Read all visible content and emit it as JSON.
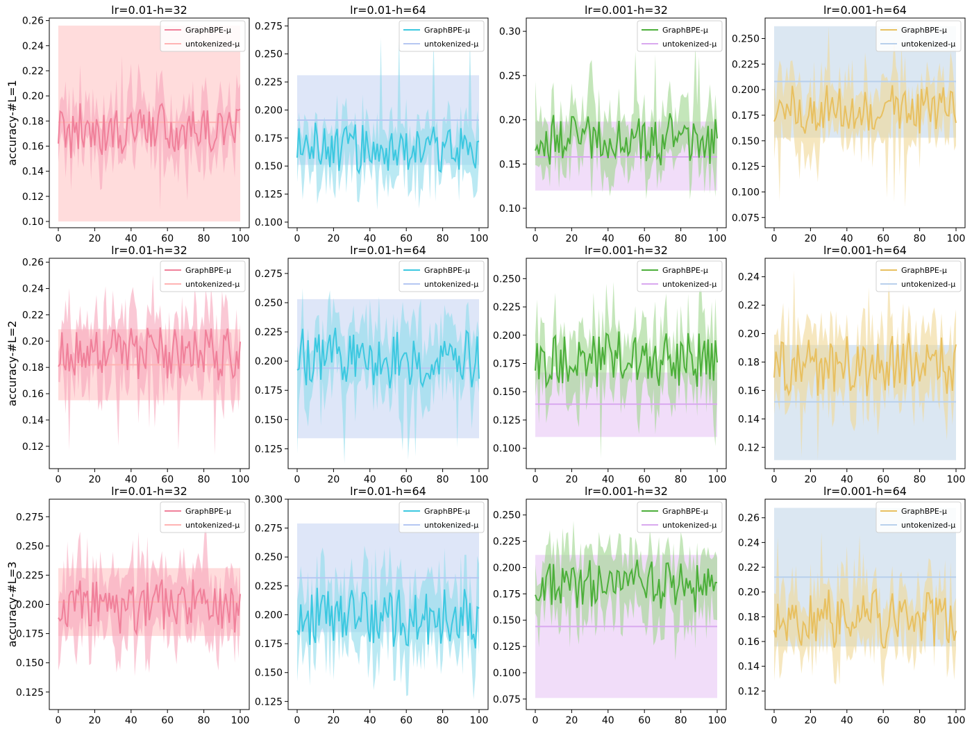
{
  "figure": {
    "row_labels": [
      "accuracy-#L=1",
      "accuracy-#L=2",
      "accuracy-#L=3"
    ],
    "legend_entries": [
      "GraphBPE-μ",
      "untokenized-μ"
    ]
  },
  "chart_data": [
    {
      "type": "line",
      "title": "lr=0.01-h=32",
      "row": 0,
      "col": 0,
      "ylabel": "accuracy-#L=1",
      "xlim": [
        0,
        100
      ],
      "ylim": [
        0.095,
        0.262
      ],
      "xticks": [
        0,
        20,
        40,
        60,
        80,
        100
      ],
      "yticks": [
        0.1,
        0.12,
        0.14,
        0.16,
        0.18,
        0.2,
        0.22,
        0.24,
        0.26
      ],
      "ytick_labels": [
        "0.10",
        "0.12",
        "0.14",
        "0.16",
        "0.18",
        "0.20",
        "0.22",
        "0.24",
        "0.26"
      ],
      "colors": {
        "graph": "#f0809a",
        "graph_band": "#f7a6bb",
        "untok": "#ffb3b3",
        "untok_band": "#ffc7c7"
      },
      "series": [
        {
          "name": "GraphBPE-μ",
          "mean": 0.172,
          "spread": 0.012,
          "band": 0.018,
          "noise_max": 0.232,
          "noise_min": 0.105
        },
        {
          "name": "untokenized-μ",
          "mean": 0.179,
          "band_low": 0.1,
          "band_high": 0.256
        }
      ],
      "legend": "top-right",
      "seed": 11
    },
    {
      "type": "line",
      "title": "lr=0.01-h=64",
      "row": 0,
      "col": 1,
      "ylabel": "",
      "xlim": [
        0,
        100
      ],
      "ylim": [
        0.095,
        0.282
      ],
      "xticks": [
        0,
        20,
        40,
        60,
        80,
        100
      ],
      "yticks": [
        0.1,
        0.125,
        0.15,
        0.175,
        0.2,
        0.225,
        0.25,
        0.275
      ],
      "ytick_labels": [
        "0.100",
        "0.125",
        "0.150",
        "0.175",
        "0.200",
        "0.225",
        "0.250",
        "0.275"
      ],
      "colors": {
        "graph": "#3cc8e0",
        "graph_band": "#8fdcec",
        "untok": "#b5c7f2",
        "untok_band": "#c9d6f4"
      },
      "series": [
        {
          "name": "GraphBPE-μ",
          "mean": 0.168,
          "spread": 0.013,
          "band": 0.02,
          "noise_max": 0.268,
          "noise_min": 0.108
        },
        {
          "name": "untokenized-μ",
          "mean": 0.191,
          "band_low": 0.151,
          "band_high": 0.231
        }
      ],
      "legend": "top-right",
      "seed": 23
    },
    {
      "type": "line",
      "title": "lr=0.001-h=32",
      "row": 0,
      "col": 2,
      "ylabel": "",
      "xlim": [
        0,
        100
      ],
      "ylim": [
        0.078,
        0.315
      ],
      "xticks": [
        0,
        20,
        40,
        60,
        80,
        100
      ],
      "yticks": [
        0.1,
        0.15,
        0.2,
        0.25,
        0.3
      ],
      "ytick_labels": [
        "0.10",
        "0.15",
        "0.20",
        "0.25",
        "0.30"
      ],
      "colors": {
        "graph": "#4caf3a",
        "graph_band": "#9fd68f",
        "untok": "#d9a8ef",
        "untok_band": "#e8c8f5"
      },
      "series": [
        {
          "name": "GraphBPE-μ",
          "mean": 0.178,
          "spread": 0.016,
          "band": 0.028,
          "noise_max": 0.292,
          "noise_min": 0.085
        },
        {
          "name": "untokenized-μ",
          "mean": 0.158,
          "band_low": 0.12,
          "band_high": 0.198
        }
      ],
      "legend": "top-right",
      "seed": 37
    },
    {
      "type": "line",
      "title": "lr=0.001-h=64",
      "row": 0,
      "col": 3,
      "ylabel": "",
      "xlim": [
        0,
        100
      ],
      "ylim": [
        0.065,
        0.27
      ],
      "xticks": [
        0,
        20,
        40,
        60,
        80,
        100
      ],
      "yticks": [
        0.075,
        0.1,
        0.125,
        0.15,
        0.175,
        0.2,
        0.225,
        0.25
      ],
      "ytick_labels": [
        "0.075",
        "0.100",
        "0.125",
        "0.150",
        "0.175",
        "0.200",
        "0.225",
        "0.250"
      ],
      "colors": {
        "graph": "#e8c060",
        "graph_band": "#f0d898",
        "untok": "#b8d0ec",
        "untok_band": "#c5d8ea"
      },
      "series": [
        {
          "name": "GraphBPE-μ",
          "mean": 0.18,
          "spread": 0.014,
          "band": 0.025,
          "noise_max": 0.262,
          "noise_min": 0.085
        },
        {
          "name": "untokenized-μ",
          "mean": 0.208,
          "band_low": 0.153,
          "band_high": 0.262
        }
      ],
      "legend": "top-right",
      "seed": 41
    },
    {
      "type": "line",
      "title": "lr=0.01-h=32",
      "row": 1,
      "col": 0,
      "ylabel": "accuracy-#L=2",
      "xlim": [
        0,
        100
      ],
      "ylim": [
        0.103,
        0.263
      ],
      "xticks": [
        0,
        20,
        40,
        60,
        80,
        100
      ],
      "yticks": [
        0.12,
        0.14,
        0.16,
        0.18,
        0.2,
        0.22,
        0.24,
        0.26
      ],
      "ytick_labels": [
        "0.12",
        "0.14",
        "0.16",
        "0.18",
        "0.20",
        "0.22",
        "0.24",
        "0.26"
      ],
      "colors": {
        "graph": "#f0809a",
        "graph_band": "#f7a6bb",
        "untok": "#ffb3b3",
        "untok_band": "#ffc7c7"
      },
      "series": [
        {
          "name": "GraphBPE-μ",
          "mean": 0.19,
          "spread": 0.012,
          "band": 0.022,
          "noise_max": 0.255,
          "noise_min": 0.11
        },
        {
          "name": "untokenized-μ",
          "mean": 0.182,
          "band_low": 0.155,
          "band_high": 0.209
        }
      ],
      "legend": "top-right",
      "seed": 53
    },
    {
      "type": "line",
      "title": "lr=0.01-h=64",
      "row": 1,
      "col": 1,
      "ylabel": "",
      "xlim": [
        0,
        100
      ],
      "ylim": [
        0.108,
        0.288
      ],
      "xticks": [
        0,
        20,
        40,
        60,
        80,
        100
      ],
      "yticks": [
        0.125,
        0.15,
        0.175,
        0.2,
        0.225,
        0.25,
        0.275
      ],
      "ytick_labels": [
        "0.125",
        "0.150",
        "0.175",
        "0.200",
        "0.225",
        "0.250",
        "0.275"
      ],
      "colors": {
        "graph": "#3cc8e0",
        "graph_band": "#8fdcec",
        "untok": "#b5c7f2",
        "untok_band": "#c9d6f4"
      },
      "series": [
        {
          "name": "GraphBPE-μ",
          "mean": 0.203,
          "spread": 0.014,
          "band": 0.025,
          "noise_max": 0.265,
          "noise_min": 0.112
        },
        {
          "name": "untokenized-μ",
          "mean": 0.194,
          "band_low": 0.134,
          "band_high": 0.253
        }
      ],
      "legend": "top-right",
      "seed": 67
    },
    {
      "type": "line",
      "title": "lr=0.001-h=32",
      "row": 1,
      "col": 2,
      "ylabel": "",
      "xlim": [
        0,
        100
      ],
      "ylim": [
        0.082,
        0.268
      ],
      "xticks": [
        0,
        20,
        40,
        60,
        80,
        100
      ],
      "yticks": [
        0.1,
        0.125,
        0.15,
        0.175,
        0.2,
        0.225,
        0.25
      ],
      "ytick_labels": [
        "0.100",
        "0.125",
        "0.150",
        "0.175",
        "0.200",
        "0.225",
        "0.250"
      ],
      "colors": {
        "graph": "#4caf3a",
        "graph_band": "#9fd68f",
        "untok": "#d9a8ef",
        "untok_band": "#e8c8f5"
      },
      "series": [
        {
          "name": "GraphBPE-μ",
          "mean": 0.18,
          "spread": 0.015,
          "band": 0.025,
          "noise_max": 0.262,
          "noise_min": 0.088
        },
        {
          "name": "untokenized-μ",
          "mean": 0.139,
          "band_low": 0.11,
          "band_high": 0.167
        }
      ],
      "legend": "top-right",
      "seed": 71
    },
    {
      "type": "line",
      "title": "lr=0.001-h=64",
      "row": 1,
      "col": 3,
      "ylabel": "",
      "xlim": [
        0,
        100
      ],
      "ylim": [
        0.105,
        0.253
      ],
      "xticks": [
        0,
        20,
        40,
        60,
        80,
        100
      ],
      "yticks": [
        0.12,
        0.14,
        0.16,
        0.18,
        0.2,
        0.22,
        0.24
      ],
      "ytick_labels": [
        "0.12",
        "0.14",
        "0.16",
        "0.18",
        "0.20",
        "0.22",
        "0.24"
      ],
      "colors": {
        "graph": "#e8c060",
        "graph_band": "#f0d898",
        "untok": "#b8d0ec",
        "untok_band": "#c5d8ea"
      },
      "series": [
        {
          "name": "GraphBPE-μ",
          "mean": 0.178,
          "spread": 0.012,
          "band": 0.022,
          "noise_max": 0.248,
          "noise_min": 0.11
        },
        {
          "name": "untokenized-μ",
          "mean": 0.152,
          "band_low": 0.111,
          "band_high": 0.192
        }
      ],
      "legend": "top-right",
      "seed": 83
    },
    {
      "type": "line",
      "title": "lr=0.01-h=32",
      "row": 2,
      "col": 0,
      "ylabel": "accuracy-#L=3",
      "xlim": [
        0,
        100
      ],
      "ylim": [
        0.11,
        0.29
      ],
      "xticks": [
        0,
        20,
        40,
        60,
        80,
        100
      ],
      "yticks": [
        0.125,
        0.15,
        0.175,
        0.2,
        0.225,
        0.25,
        0.275
      ],
      "ytick_labels": [
        "0.125",
        "0.150",
        "0.175",
        "0.200",
        "0.225",
        "0.250",
        "0.275"
      ],
      "colors": {
        "graph": "#f0809a",
        "graph_band": "#f7a6bb",
        "untok": "#ffb3b3",
        "untok_band": "#ffc7c7"
      },
      "series": [
        {
          "name": "GraphBPE-μ",
          "mean": 0.198,
          "spread": 0.013,
          "band": 0.025,
          "noise_max": 0.28,
          "noise_min": 0.12
        },
        {
          "name": "untokenized-μ",
          "mean": 0.202,
          "band_low": 0.173,
          "band_high": 0.231
        }
      ],
      "legend": "top-right",
      "seed": 97
    },
    {
      "type": "line",
      "title": "lr=0.01-h=64",
      "row": 2,
      "col": 1,
      "ylabel": "",
      "xlim": [
        0,
        100
      ],
      "ylim": [
        0.118,
        0.3
      ],
      "xticks": [
        0,
        20,
        40,
        60,
        80,
        100
      ],
      "yticks": [
        0.125,
        0.15,
        0.175,
        0.2,
        0.225,
        0.25,
        0.275,
        0.3
      ],
      "ytick_labels": [
        "0.125",
        "0.150",
        "0.175",
        "0.200",
        "0.225",
        "0.250",
        "0.275",
        "0.300"
      ],
      "colors": {
        "graph": "#3cc8e0",
        "graph_band": "#8fdcec",
        "untok": "#b5c7f2",
        "untok_band": "#c9d6f4"
      },
      "series": [
        {
          "name": "GraphBPE-μ",
          "mean": 0.198,
          "spread": 0.016,
          "band": 0.028,
          "noise_max": 0.262,
          "noise_min": 0.125
        },
        {
          "name": "untokenized-μ",
          "mean": 0.232,
          "band_low": 0.185,
          "band_high": 0.279
        }
      ],
      "legend": "top-right",
      "seed": 101
    },
    {
      "type": "line",
      "title": "lr=0.001-h=32",
      "row": 2,
      "col": 2,
      "ylabel": "",
      "xlim": [
        0,
        100
      ],
      "ylim": [
        0.065,
        0.265
      ],
      "xticks": [
        0,
        20,
        40,
        60,
        80,
        100
      ],
      "yticks": [
        0.075,
        0.1,
        0.125,
        0.15,
        0.175,
        0.2,
        0.225,
        0.25
      ],
      "ytick_labels": [
        "0.075",
        "0.100",
        "0.125",
        "0.150",
        "0.175",
        "0.200",
        "0.225",
        "0.250"
      ],
      "colors": {
        "graph": "#4caf3a",
        "graph_band": "#9fd68f",
        "untok": "#d9a8ef",
        "untok_band": "#e8c8f5"
      },
      "series": [
        {
          "name": "GraphBPE-μ",
          "mean": 0.184,
          "spread": 0.014,
          "band": 0.028,
          "noise_max": 0.255,
          "noise_min": 0.11
        },
        {
          "name": "untokenized-μ",
          "mean": 0.144,
          "band_low": 0.076,
          "band_high": 0.212
        }
      ],
      "legend": "top-right",
      "seed": 113
    },
    {
      "type": "line",
      "title": "lr=0.001-h=64",
      "row": 2,
      "col": 3,
      "ylabel": "",
      "xlim": [
        0,
        100
      ],
      "ylim": [
        0.105,
        0.275
      ],
      "xticks": [
        0,
        20,
        40,
        60,
        80,
        100
      ],
      "yticks": [
        0.12,
        0.14,
        0.16,
        0.18,
        0.2,
        0.22,
        0.24,
        0.26
      ],
      "ytick_labels": [
        "0.12",
        "0.14",
        "0.16",
        "0.18",
        "0.20",
        "0.22",
        "0.24",
        "0.26"
      ],
      "colors": {
        "graph": "#e8c060",
        "graph_band": "#f0d898",
        "untok": "#b8d0ec",
        "untok_band": "#c5d8ea"
      },
      "series": [
        {
          "name": "GraphBPE-μ",
          "mean": 0.178,
          "spread": 0.013,
          "band": 0.022,
          "noise_max": 0.252,
          "noise_min": 0.12
        },
        {
          "name": "untokenized-μ",
          "mean": 0.212,
          "band_low": 0.156,
          "band_high": 0.268
        }
      ],
      "legend": "top-right",
      "seed": 127
    }
  ]
}
